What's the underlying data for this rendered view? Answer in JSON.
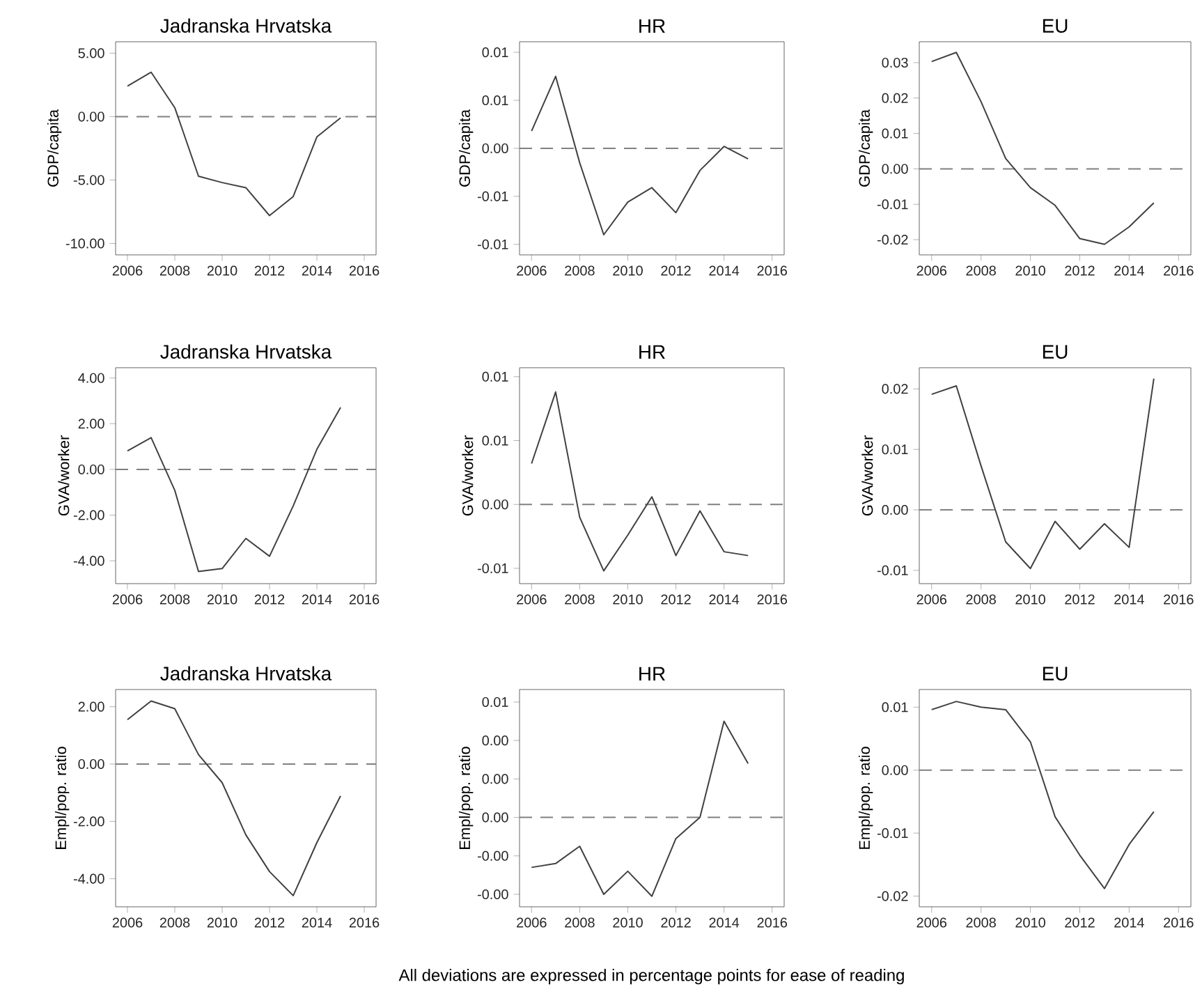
{
  "chart_data": [
    {
      "type": "line",
      "title": "Jadranska Hrvatska",
      "ylabel": "GDP/capita",
      "x": [
        2006,
        2007,
        2008,
        2009,
        2010,
        2011,
        2012,
        2013,
        2014,
        2015
      ],
      "values": [
        2.4,
        3.5,
        0.7,
        -4.7,
        -5.2,
        -5.6,
        -7.8,
        -6.3,
        -1.6,
        -0.1
      ],
      "color": "#404040",
      "xlim": [
        2005.5,
        2016.5
      ],
      "ylim": [
        -10.9,
        5.9
      ],
      "xticks": [
        2006,
        2008,
        2010,
        2012,
        2014,
        2016
      ],
      "yticks": [
        {
          "value": 5,
          "label": "5.00"
        },
        {
          "value": 0,
          "label": "0.00"
        },
        {
          "value": -5,
          "label": "-5.00"
        },
        {
          "value": -10,
          "label": "-10.00"
        }
      ],
      "ref_lines": [
        {
          "axis": "y",
          "value": 0,
          "color": "#808080",
          "line_style": "dashed"
        }
      ]
    },
    {
      "type": "line",
      "title": "HR",
      "ylabel": "GDP/capita",
      "x": [
        2006,
        2007,
        2008,
        2009,
        2010,
        2011,
        2012,
        2013,
        2014,
        2015
      ],
      "values": [
        0.0018,
        0.0075,
        -0.0015,
        -0.009,
        -0.0056,
        -0.0041,
        -0.0067,
        -0.0023,
        0.0002,
        -0.0011
      ],
      "color": "#404040",
      "xlim": [
        2005.5,
        2016.5
      ],
      "ylim": [
        -0.0111,
        0.0111
      ],
      "xticks": [
        2006,
        2008,
        2010,
        2012,
        2014,
        2016
      ],
      "yticks": [
        {
          "value": 0.01,
          "label": "0.01"
        },
        {
          "value": 0.005,
          "label": "0.01"
        },
        {
          "value": 0,
          "label": "0.00"
        },
        {
          "value": -0.005,
          "label": "-0.01"
        },
        {
          "value": -0.01,
          "label": "-0.01"
        }
      ],
      "ref_lines": [
        {
          "axis": "y",
          "value": 0,
          "color": "#808080",
          "line_style": "dashed"
        }
      ]
    },
    {
      "type": "line",
      "title": "EU",
      "ylabel": "GDP/capita",
      "x": [
        2006,
        2007,
        2008,
        2009,
        2010,
        2011,
        2012,
        2013,
        2014,
        2015
      ],
      "values": [
        0.0303,
        0.0329,
        0.019,
        0.0029,
        -0.0053,
        -0.0103,
        -0.0197,
        -0.0213,
        -0.0164,
        -0.0096
      ],
      "color": "#404040",
      "xlim": [
        2005.5,
        2016.5
      ],
      "ylim": [
        -0.0243,
        0.0359
      ],
      "xticks": [
        2006,
        2008,
        2010,
        2012,
        2014,
        2016
      ],
      "yticks": [
        {
          "value": 0.03,
          "label": "0.03"
        },
        {
          "value": 0.02,
          "label": "0.02"
        },
        {
          "value": 0.01,
          "label": "0.01"
        },
        {
          "value": 0,
          "label": "0.00"
        },
        {
          "value": -0.01,
          "label": "-0.01"
        },
        {
          "value": -0.02,
          "label": "-0.02"
        }
      ],
      "ref_lines": [
        {
          "axis": "y",
          "value": 0,
          "color": "#808080",
          "line_style": "dashed"
        }
      ]
    },
    {
      "type": "line",
      "title": "Jadranska Hrvatska",
      "ylabel": "GVA/worker",
      "x": [
        2006,
        2007,
        2008,
        2009,
        2010,
        2011,
        2012,
        2013,
        2014,
        2015
      ],
      "values": [
        0.81,
        1.39,
        -0.92,
        -4.47,
        -4.34,
        -3.02,
        -3.8,
        -1.6,
        0.88,
        2.71
      ],
      "color": "#404040",
      "xlim": [
        2005.5,
        2016.5
      ],
      "ylim": [
        -5.0,
        4.45
      ],
      "xticks": [
        2006,
        2008,
        2010,
        2012,
        2014,
        2016
      ],
      "yticks": [
        {
          "value": 4,
          "label": "4.00"
        },
        {
          "value": 2,
          "label": "2.00"
        },
        {
          "value": 0,
          "label": "0.00"
        },
        {
          "value": -2,
          "label": "-2.00"
        },
        {
          "value": -4,
          "label": "-4.00"
        }
      ],
      "ref_lines": [
        {
          "axis": "y",
          "value": 0,
          "color": "#808080",
          "line_style": "dashed"
        }
      ]
    },
    {
      "type": "line",
      "title": "HR",
      "ylabel": "GVA/worker",
      "x": [
        2006,
        2007,
        2008,
        2009,
        2010,
        2011,
        2012,
        2013,
        2014,
        2015
      ],
      "values": [
        0.0032,
        0.0088,
        -0.001,
        -0.0052,
        -0.0024,
        0.0006,
        -0.004,
        -0.0005,
        -0.0037,
        -0.004
      ],
      "color": "#404040",
      "xlim": [
        2005.5,
        2016.5
      ],
      "ylim": [
        -0.0062,
        0.0107
      ],
      "xticks": [
        2006,
        2008,
        2010,
        2012,
        2014,
        2016
      ],
      "yticks": [
        {
          "value": 0.01,
          "label": "0.01"
        },
        {
          "value": 0.005,
          "label": "0.01"
        },
        {
          "value": 0,
          "label": "0.00"
        },
        {
          "value": -0.005,
          "label": "-0.01"
        }
      ],
      "ref_lines": [
        {
          "axis": "y",
          "value": 0,
          "color": "#808080",
          "line_style": "dashed"
        }
      ]
    },
    {
      "type": "line",
      "title": "EU",
      "ylabel": "GVA/worker",
      "x": [
        2006,
        2007,
        2008,
        2009,
        2010,
        2011,
        2012,
        2013,
        2014,
        2015
      ],
      "values": [
        0.0191,
        0.0205,
        0.0073,
        -0.0053,
        -0.0097,
        -0.0019,
        -0.0065,
        -0.0023,
        -0.0062,
        0.0217
      ],
      "color": "#404040",
      "xlim": [
        2005.5,
        2016.5
      ],
      "ylim": [
        -0.0122,
        0.0235
      ],
      "xticks": [
        2006,
        2008,
        2010,
        2012,
        2014,
        2016
      ],
      "yticks": [
        {
          "value": 0.02,
          "label": "0.02"
        },
        {
          "value": 0.01,
          "label": "0.01"
        },
        {
          "value": 0,
          "label": "0.00"
        },
        {
          "value": -0.01,
          "label": "-0.01"
        }
      ],
      "ref_lines": [
        {
          "axis": "y",
          "value": 0,
          "color": "#808080",
          "line_style": "dashed"
        }
      ]
    },
    {
      "type": "line",
      "title": "Jadranska Hrvatska",
      "ylabel": "Empl/pop. ratio",
      "x": [
        2006,
        2007,
        2008,
        2009,
        2010,
        2011,
        2012,
        2013,
        2014,
        2015
      ],
      "values": [
        1.55,
        2.2,
        1.93,
        0.33,
        -0.65,
        -2.47,
        -3.75,
        -4.59,
        -2.74,
        -1.11
      ],
      "color": "#404040",
      "xlim": [
        2005.5,
        2016.5
      ],
      "ylim": [
        -4.98,
        2.6
      ],
      "xticks": [
        2006,
        2008,
        2010,
        2012,
        2014,
        2016
      ],
      "yticks": [
        {
          "value": 2,
          "label": "2.00"
        },
        {
          "value": 0,
          "label": "0.00"
        },
        {
          "value": -2,
          "label": "-2.00"
        },
        {
          "value": -4,
          "label": "-4.00"
        }
      ],
      "ref_lines": [
        {
          "axis": "y",
          "value": 0,
          "color": "#808080",
          "line_style": "dashed"
        }
      ]
    },
    {
      "type": "line",
      "title": "HR",
      "ylabel": "Empl/pop. ratio",
      "x": [
        2006,
        2007,
        2008,
        2009,
        2010,
        2011,
        2012,
        2013,
        2014,
        2015
      ],
      "values": [
        -0.0026,
        -0.0024,
        -0.0015,
        -0.004,
        -0.0028,
        -0.0041,
        -0.0011,
        0.0,
        0.005,
        0.0028
      ],
      "color": "#404040",
      "xlim": [
        2005.5,
        2016.5
      ],
      "ylim": [
        -0.00465,
        0.00665
      ],
      "xticks": [
        2006,
        2008,
        2010,
        2012,
        2014,
        2016
      ],
      "yticks": [
        {
          "value": 0.006,
          "label": "0.01"
        },
        {
          "value": 0.004,
          "label": "0.00"
        },
        {
          "value": 0.002,
          "label": "0.00"
        },
        {
          "value": 0,
          "label": "0.00"
        },
        {
          "value": -0.002,
          "label": "-0.00"
        },
        {
          "value": -0.004,
          "label": "-0.00"
        }
      ],
      "ref_lines": [
        {
          "axis": "y",
          "value": 0,
          "color": "#808080",
          "line_style": "dashed"
        }
      ],
      "annotations": [
        "All deviations are expressed in percentage points for ease of reading"
      ]
    },
    {
      "type": "line",
      "title": "EU",
      "ylabel": "Empl/pop. ratio",
      "x": [
        2006,
        2007,
        2008,
        2009,
        2010,
        2011,
        2012,
        2013,
        2014,
        2015
      ],
      "values": [
        0.0096,
        0.0109,
        0.01,
        0.0096,
        0.0045,
        -0.0074,
        -0.0135,
        -0.0188,
        -0.0118,
        -0.0066
      ],
      "color": "#404040",
      "xlim": [
        2005.5,
        2016.5
      ],
      "ylim": [
        -0.0217,
        0.0128
      ],
      "xticks": [
        2006,
        2008,
        2010,
        2012,
        2014,
        2016
      ],
      "yticks": [
        {
          "value": 0.01,
          "label": "0.01"
        },
        {
          "value": 0,
          "label": "0.00"
        },
        {
          "value": -0.01,
          "label": "-0.01"
        },
        {
          "value": -0.02,
          "label": "-0.02"
        }
      ],
      "ref_lines": [
        {
          "axis": "y",
          "value": 0,
          "color": "#808080",
          "line_style": "dashed"
        }
      ]
    }
  ]
}
